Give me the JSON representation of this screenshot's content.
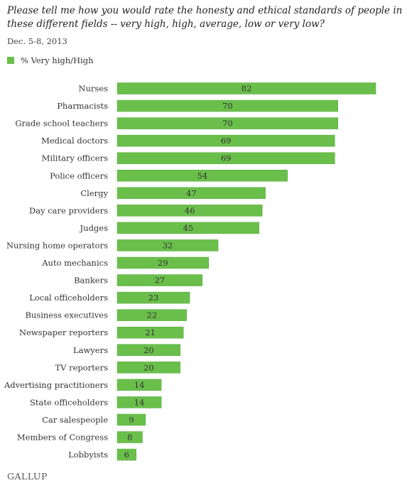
{
  "header": {
    "title": "Please tell me how you would rate the honesty and ethical standards of people in these different fields -- very high, high, average, low or very low?",
    "subtitle": "Dec. 5-8, 2013"
  },
  "legend": {
    "label": "% Very high/High"
  },
  "footer": {
    "logo_text": "GALLUP"
  },
  "colors": {
    "bar": "#6abf4b",
    "bar_stroke": "#5aa93f",
    "swatch": "#6abf4b"
  },
  "chart_data": {
    "type": "bar",
    "orientation": "horizontal",
    "title": "Please tell me how you would rate the honesty and ethical standards of people in these different fields -- very high, high, average, low or very low?",
    "subtitle": "Dec. 5-8, 2013",
    "xlabel": "",
    "ylabel": "",
    "xlim": [
      0,
      82
    ],
    "grid": false,
    "legend_position": "top-left",
    "categories": [
      "Nurses",
      "Pharmacists",
      "Grade school teachers",
      "Medical doctors",
      "Military officers",
      "Police officers",
      "Clergy",
      "Day care providers",
      "Judges",
      "Nursing home operators",
      "Auto mechanics",
      "Bankers",
      "Local officeholders",
      "Business executives",
      "Newspaper reporters",
      "Lawyers",
      "TV reporters",
      "Advertising practitioners",
      "State officeholders",
      "Car salespeople",
      "Members of Congress",
      "Lobbyists"
    ],
    "series": [
      {
        "name": "% Very high/High",
        "values": [
          82,
          70,
          70,
          69,
          69,
          54,
          47,
          46,
          45,
          32,
          29,
          27,
          23,
          22,
          21,
          20,
          20,
          14,
          14,
          9,
          8,
          6
        ]
      }
    ]
  }
}
